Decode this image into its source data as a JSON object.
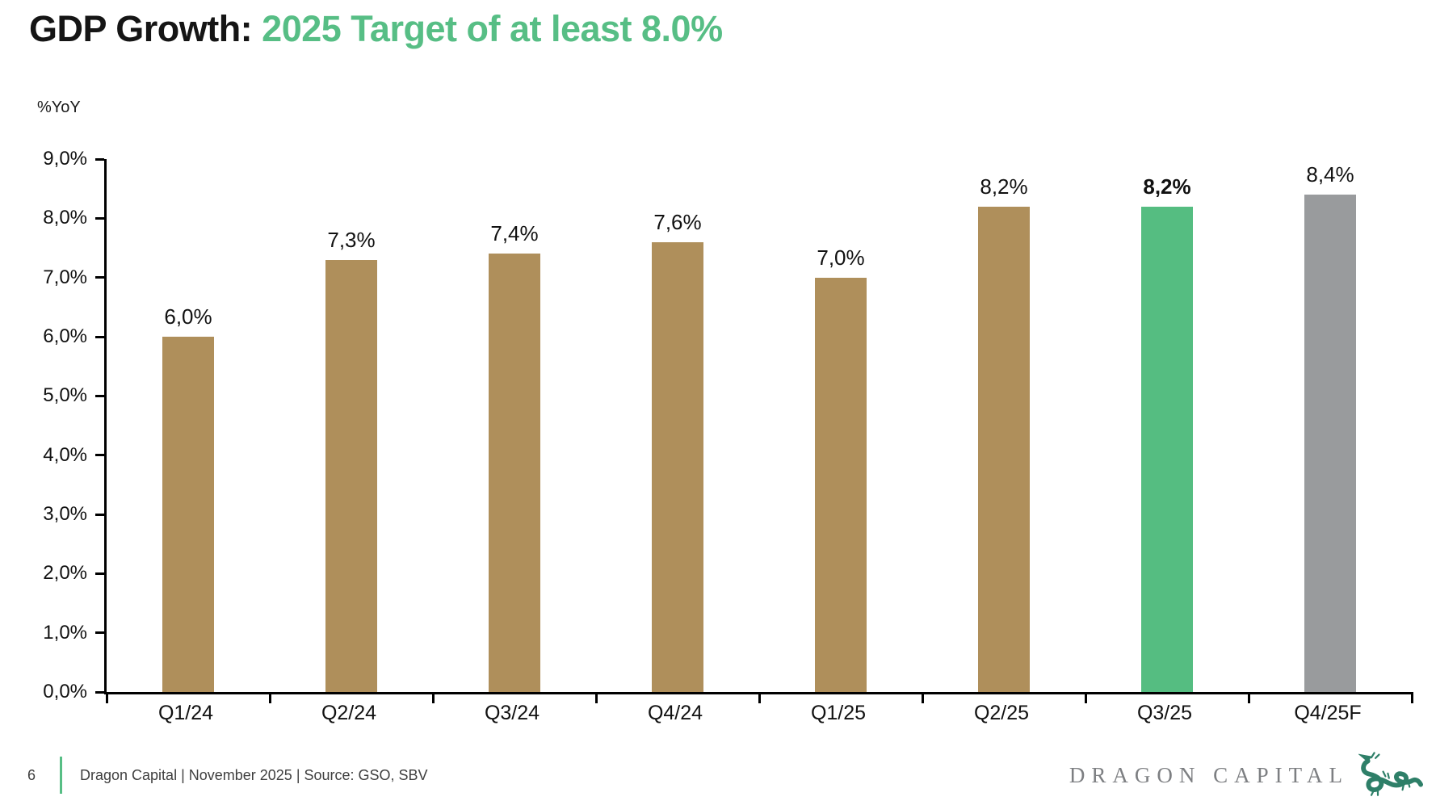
{
  "title": {
    "prefix": "GDP Growth: ",
    "highlight": "2025 Target of at least 8.0%"
  },
  "chart_data": {
    "type": "bar",
    "unit_label": "%YoY",
    "categories": [
      "Q1/24",
      "Q2/24",
      "Q3/24",
      "Q4/24",
      "Q1/25",
      "Q2/25",
      "Q3/25",
      "Q4/25F"
    ],
    "values": [
      6.0,
      7.3,
      7.4,
      7.6,
      7.0,
      8.2,
      8.2,
      8.4
    ],
    "value_labels": [
      "6,0%",
      "7,3%",
      "7,4%",
      "7,6%",
      "7,0%",
      "8,2%",
      "8,2%",
      "8,4%"
    ],
    "bold_label_index": 6,
    "bar_colors": [
      "#AF8F5B",
      "#AF8F5B",
      "#AF8F5B",
      "#AF8F5B",
      "#AF8F5B",
      "#AF8F5B",
      "#55BD81",
      "#999B9D"
    ],
    "ylim": [
      0,
      9
    ],
    "ytick_step": 1,
    "ytick_labels": [
      "0,0%",
      "1,0%",
      "2,0%",
      "3,0%",
      "4,0%",
      "5,0%",
      "6,0%",
      "7,0%",
      "8,0%",
      "9,0%"
    ],
    "grid": false,
    "legend": false
  },
  "footer": {
    "page_number": "6",
    "text": "Dragon Capital | November 2025 | Source: GSO, SBV",
    "accent_color": "#57BE85"
  },
  "logo": {
    "text": "DRAGON CAPITAL",
    "text_color": "#7d7f82",
    "dragon_color": "#2E7F68"
  },
  "colors": {
    "title_highlight": "#57BE85",
    "bar_tan": "#AF8F5B",
    "bar_green": "#55BD81",
    "bar_gray": "#999B9D",
    "axis": "#000000"
  }
}
